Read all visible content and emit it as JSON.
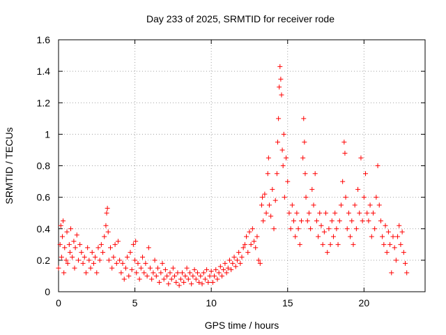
{
  "chart_data": {
    "type": "scatter",
    "title": "Day 233 of 2025, SRMTID for receiver rode",
    "xlabel": "GPS time / hours",
    "ylabel": "SRMTID / TECUs",
    "xlim": [
      0,
      24
    ],
    "ylim": [
      0,
      1.6
    ],
    "x_ticks": [
      0,
      5,
      10,
      15,
      20
    ],
    "x_tick_labels": [
      "0",
      "5",
      "10",
      "15",
      "20"
    ],
    "y_ticks": [
      0,
      0.2,
      0.4,
      0.6,
      0.8,
      1.0,
      1.2,
      1.4,
      1.6
    ],
    "y_tick_labels": [
      "0",
      "0.2",
      "0.4",
      "0.6",
      "0.8",
      "1",
      "1.2",
      "1.4",
      "1.6"
    ],
    "grid": true,
    "marker": "+",
    "series": [
      {
        "name": "SRMTID",
        "color": "#ff0000",
        "points": [
          [
            0.0,
            0.15
          ],
          [
            0.1,
            0.3
          ],
          [
            0.15,
            0.42
          ],
          [
            0.2,
            0.22
          ],
          [
            0.25,
            0.35
          ],
          [
            0.3,
            0.45
          ],
          [
            0.35,
            0.12
          ],
          [
            0.4,
            0.28
          ],
          [
            0.5,
            0.2
          ],
          [
            0.55,
            0.38
          ],
          [
            0.6,
            0.18
          ],
          [
            0.7,
            0.3
          ],
          [
            0.75,
            0.25
          ],
          [
            0.8,
            0.4
          ],
          [
            0.9,
            0.22
          ],
          [
            1.0,
            0.32
          ],
          [
            1.05,
            0.15
          ],
          [
            1.1,
            0.28
          ],
          [
            1.2,
            0.36
          ],
          [
            1.3,
            0.2
          ],
          [
            1.4,
            0.3
          ],
          [
            1.5,
            0.25
          ],
          [
            1.6,
            0.18
          ],
          [
            1.7,
            0.22
          ],
          [
            1.8,
            0.12
          ],
          [
            1.9,
            0.28
          ],
          [
            2.0,
            0.2
          ],
          [
            2.1,
            0.15
          ],
          [
            2.2,
            0.25
          ],
          [
            2.3,
            0.18
          ],
          [
            2.4,
            0.22
          ],
          [
            2.5,
            0.12
          ],
          [
            2.6,
            0.28
          ],
          [
            2.7,
            0.2
          ],
          [
            2.8,
            0.3
          ],
          [
            2.9,
            0.25
          ],
          [
            3.0,
            0.35
          ],
          [
            3.1,
            0.42
          ],
          [
            3.15,
            0.5
          ],
          [
            3.2,
            0.53
          ],
          [
            3.25,
            0.38
          ],
          [
            3.3,
            0.2
          ],
          [
            3.4,
            0.28
          ],
          [
            3.5,
            0.15
          ],
          [
            3.6,
            0.22
          ],
          [
            3.7,
            0.3
          ],
          [
            3.8,
            0.18
          ],
          [
            3.9,
            0.32
          ],
          [
            4.0,
            0.2
          ],
          [
            4.1,
            0.12
          ],
          [
            4.2,
            0.18
          ],
          [
            4.3,
            0.08
          ],
          [
            4.4,
            0.15
          ],
          [
            4.5,
            0.22
          ],
          [
            4.6,
            0.1
          ],
          [
            4.7,
            0.25
          ],
          [
            4.8,
            0.14
          ],
          [
            4.9,
            0.3
          ],
          [
            5.0,
            0.2
          ],
          [
            5.05,
            0.32
          ],
          [
            5.1,
            0.12
          ],
          [
            5.2,
            0.18
          ],
          [
            5.3,
            0.08
          ],
          [
            5.4,
            0.15
          ],
          [
            5.5,
            0.22
          ],
          [
            5.6,
            0.12
          ],
          [
            5.7,
            0.18
          ],
          [
            5.8,
            0.1
          ],
          [
            5.9,
            0.28
          ],
          [
            6.0,
            0.15
          ],
          [
            6.1,
            0.08
          ],
          [
            6.2,
            0.12
          ],
          [
            6.3,
            0.2
          ],
          [
            6.4,
            0.1
          ],
          [
            6.5,
            0.15
          ],
          [
            6.6,
            0.06
          ],
          [
            6.7,
            0.12
          ],
          [
            6.8,
            0.18
          ],
          [
            6.9,
            0.08
          ],
          [
            7.0,
            0.14
          ],
          [
            7.1,
            0.1
          ],
          [
            7.2,
            0.05
          ],
          [
            7.3,
            0.12
          ],
          [
            7.4,
            0.08
          ],
          [
            7.5,
            0.15
          ],
          [
            7.6,
            0.1
          ],
          [
            7.7,
            0.06
          ],
          [
            7.8,
            0.12
          ],
          [
            7.9,
            0.04
          ],
          [
            8.0,
            0.08
          ],
          [
            8.1,
            0.12
          ],
          [
            8.2,
            0.06
          ],
          [
            8.3,
            0.1
          ],
          [
            8.4,
            0.15
          ],
          [
            8.5,
            0.08
          ],
          [
            8.6,
            0.12
          ],
          [
            8.7,
            0.05
          ],
          [
            8.8,
            0.1
          ],
          [
            8.9,
            0.14
          ],
          [
            9.0,
            0.08
          ],
          [
            9.1,
            0.12
          ],
          [
            9.2,
            0.06
          ],
          [
            9.3,
            0.1
          ],
          [
            9.4,
            0.05
          ],
          [
            9.5,
            0.12
          ],
          [
            9.6,
            0.08
          ],
          [
            9.7,
            0.14
          ],
          [
            9.8,
            0.06
          ],
          [
            9.9,
            0.1
          ],
          [
            10.0,
            0.13
          ],
          [
            10.1,
            0.06
          ],
          [
            10.2,
            0.1
          ],
          [
            10.3,
            0.14
          ],
          [
            10.4,
            0.08
          ],
          [
            10.5,
            0.12
          ],
          [
            10.6,
            0.16
          ],
          [
            10.7,
            0.1
          ],
          [
            10.8,
            0.14
          ],
          [
            10.9,
            0.18
          ],
          [
            11.0,
            0.12
          ],
          [
            11.1,
            0.15
          ],
          [
            11.2,
            0.2
          ],
          [
            11.3,
            0.14
          ],
          [
            11.4,
            0.18
          ],
          [
            11.5,
            0.22
          ],
          [
            11.6,
            0.16
          ],
          [
            11.7,
            0.2
          ],
          [
            11.8,
            0.25
          ],
          [
            11.9,
            0.18
          ],
          [
            12.0,
            0.22
          ],
          [
            12.1,
            0.28
          ],
          [
            12.2,
            0.3
          ],
          [
            12.3,
            0.35
          ],
          [
            12.4,
            0.25
          ],
          [
            12.5,
            0.38
          ],
          [
            12.6,
            0.3
          ],
          [
            12.7,
            0.4
          ],
          [
            12.8,
            0.32
          ],
          [
            12.9,
            0.28
          ],
          [
            13.0,
            0.35
          ],
          [
            13.1,
            0.2
          ],
          [
            13.2,
            0.18
          ],
          [
            13.3,
            0.55
          ],
          [
            13.35,
            0.6
          ],
          [
            13.4,
            0.45
          ],
          [
            13.5,
            0.62
          ],
          [
            13.6,
            0.5
          ],
          [
            13.7,
            0.75
          ],
          [
            13.75,
            0.85
          ],
          [
            13.8,
            0.55
          ],
          [
            13.9,
            0.48
          ],
          [
            14.0,
            0.65
          ],
          [
            14.1,
            0.4
          ],
          [
            14.2,
            0.58
          ],
          [
            14.3,
            0.75
          ],
          [
            14.35,
            0.95
          ],
          [
            14.4,
            1.1
          ],
          [
            14.45,
            1.3
          ],
          [
            14.5,
            1.43
          ],
          [
            14.55,
            1.35
          ],
          [
            14.6,
            1.25
          ],
          [
            14.65,
            0.9
          ],
          [
            14.7,
            0.8
          ],
          [
            14.75,
            1.0
          ],
          [
            14.8,
            0.6
          ],
          [
            14.9,
            0.85
          ],
          [
            15.0,
            0.7
          ],
          [
            15.1,
            0.5
          ],
          [
            15.2,
            0.4
          ],
          [
            15.3,
            0.55
          ],
          [
            15.4,
            0.45
          ],
          [
            15.5,
            0.35
          ],
          [
            15.6,
            0.5
          ],
          [
            15.7,
            0.4
          ],
          [
            15.8,
            0.3
          ],
          [
            15.9,
            0.45
          ],
          [
            16.0,
            0.85
          ],
          [
            16.05,
            1.1
          ],
          [
            16.1,
            0.95
          ],
          [
            16.15,
            0.75
          ],
          [
            16.2,
            0.6
          ],
          [
            16.3,
            0.45
          ],
          [
            16.4,
            0.5
          ],
          [
            16.5,
            0.4
          ],
          [
            16.6,
            0.65
          ],
          [
            16.7,
            0.55
          ],
          [
            16.8,
            0.75
          ],
          [
            16.9,
            0.45
          ],
          [
            17.0,
            0.35
          ],
          [
            17.1,
            0.5
          ],
          [
            17.2,
            0.42
          ],
          [
            17.3,
            0.3
          ],
          [
            17.4,
            0.38
          ],
          [
            17.5,
            0.5
          ],
          [
            17.6,
            0.25
          ],
          [
            17.7,
            0.4
          ],
          [
            17.8,
            0.3
          ],
          [
            17.9,
            0.45
          ],
          [
            18.0,
            0.35
          ],
          [
            18.1,
            0.5
          ],
          [
            18.2,
            0.4
          ],
          [
            18.3,
            0.3
          ],
          [
            18.4,
            0.45
          ],
          [
            18.5,
            0.55
          ],
          [
            18.6,
            0.7
          ],
          [
            18.7,
            0.95
          ],
          [
            18.75,
            0.88
          ],
          [
            18.8,
            0.6
          ],
          [
            18.9,
            0.4
          ],
          [
            19.0,
            0.5
          ],
          [
            19.1,
            0.35
          ],
          [
            19.2,
            0.45
          ],
          [
            19.3,
            0.3
          ],
          [
            19.4,
            0.55
          ],
          [
            19.5,
            0.4
          ],
          [
            19.6,
            0.65
          ],
          [
            19.7,
            0.5
          ],
          [
            19.8,
            0.85
          ],
          [
            19.9,
            0.45
          ],
          [
            20.0,
            0.6
          ],
          [
            20.1,
            0.75
          ],
          [
            20.2,
            0.5
          ],
          [
            20.3,
            0.45
          ],
          [
            20.4,
            0.55
          ],
          [
            20.5,
            0.35
          ],
          [
            20.6,
            0.5
          ],
          [
            20.7,
            0.4
          ],
          [
            20.8,
            0.6
          ],
          [
            20.9,
            0.8
          ],
          [
            21.0,
            0.55
          ],
          [
            21.1,
            0.45
          ],
          [
            21.2,
            0.35
          ],
          [
            21.3,
            0.3
          ],
          [
            21.4,
            0.42
          ],
          [
            21.5,
            0.25
          ],
          [
            21.6,
            0.38
          ],
          [
            21.7,
            0.3
          ],
          [
            21.8,
            0.12
          ],
          [
            21.9,
            0.35
          ],
          [
            22.0,
            0.28
          ],
          [
            22.1,
            0.2
          ],
          [
            22.2,
            0.35
          ],
          [
            22.3,
            0.42
          ],
          [
            22.4,
            0.3
          ],
          [
            22.5,
            0.38
          ],
          [
            22.6,
            0.25
          ],
          [
            22.7,
            0.18
          ],
          [
            22.8,
            0.12
          ]
        ]
      }
    ]
  }
}
